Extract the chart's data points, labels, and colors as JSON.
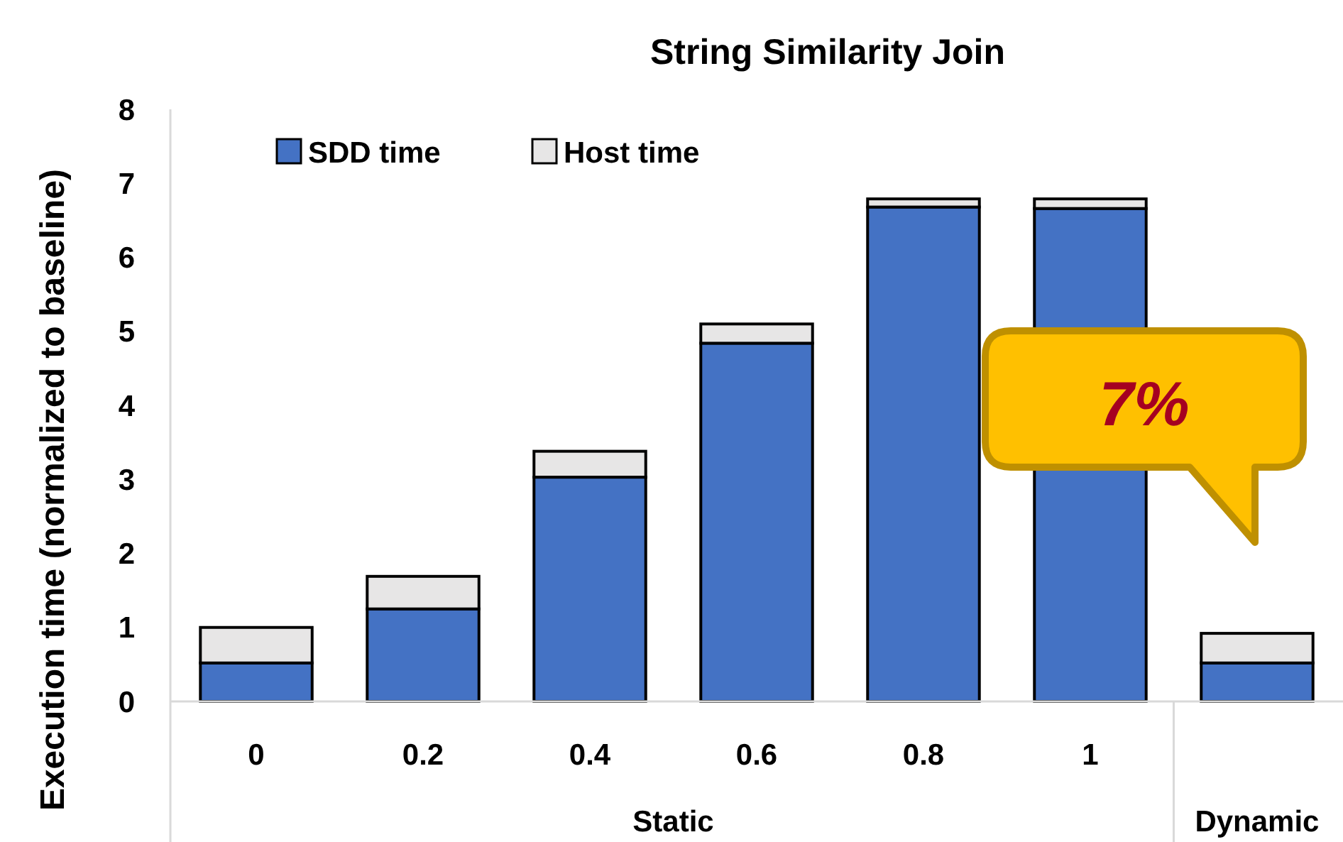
{
  "chart_data": {
    "type": "bar",
    "title": "String Similarity Join",
    "ylabel": "Execution time (normalized to baseline)",
    "categories": [
      "0",
      "0.2",
      "0.4",
      "0.6",
      "0.8",
      "1",
      null
    ],
    "stacked": true,
    "series": [
      {
        "name": "SDD time",
        "color": "#4472c4",
        "values": [
          0.52,
          1.25,
          3.03,
          4.84,
          6.68,
          6.66,
          0.52
        ]
      },
      {
        "name": "Host time",
        "color": "#e7e6e6",
        "values": [
          0.48,
          0.44,
          0.35,
          0.26,
          0.11,
          0.13,
          0.4
        ]
      }
    ],
    "ylim": [
      0,
      8
    ],
    "yticks": [
      0,
      1,
      2,
      3,
      4,
      5,
      6,
      7,
      8
    ],
    "legend": "top left",
    "annotations": [
      "7%",
      "Static",
      "Dynamic"
    ]
  }
}
